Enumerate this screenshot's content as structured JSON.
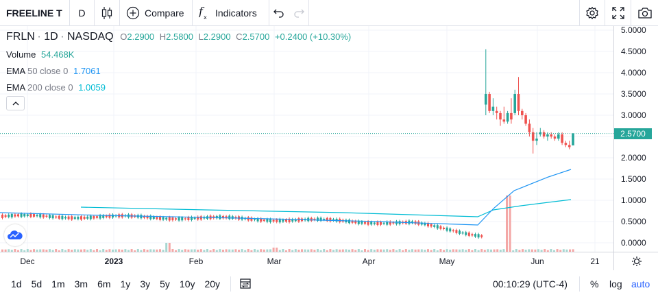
{
  "toolbar": {
    "symbol": "FREELINE T",
    "interval": "D",
    "compare_label": "Compare",
    "indicators_label": "Indicators"
  },
  "legend": {
    "ticker": "FRLN",
    "interval": "1D",
    "exchange": "NASDAQ",
    "o_label": "O",
    "o_value": "2.2900",
    "h_label": "H",
    "h_value": "2.5800",
    "l_label": "L",
    "l_value": "2.2900",
    "c_label": "C",
    "c_value": "2.5700",
    "change": "+0.2400 (+10.30%)",
    "volume_label": "Volume",
    "volume_value": "54.468K",
    "ema50_label": "EMA",
    "ema50_params": "50 close 0",
    "ema50_value": "1.7061",
    "ema200_label": "EMA",
    "ema200_params": "200 close 0",
    "ema200_value": "1.0059"
  },
  "price_scale": {
    "labels": [
      "5.0000",
      "4.5000",
      "4.0000",
      "3.5000",
      "3.0000",
      "2.5000",
      "2.0000",
      "1.5000",
      "1.0000",
      "0.5000",
      "0.0000"
    ],
    "last_price": "2.5700"
  },
  "time_axis": {
    "labels": [
      "Dec",
      "2023",
      "Feb",
      "Mar",
      "Apr",
      "May",
      "Jun",
      "21"
    ]
  },
  "bottombar": {
    "ranges": [
      "1d",
      "5d",
      "1m",
      "3m",
      "6m",
      "1y",
      "3y",
      "5y",
      "10y",
      "20y"
    ],
    "clock": "00:10:29 (UTC-4)",
    "percent": "%",
    "log": "log",
    "auto": "auto"
  },
  "colors": {
    "up": "#26a69a",
    "down": "#ef5350",
    "ema50": "#2196f3",
    "ema200": "#00bcd4",
    "accent": "#2962ff"
  },
  "chart_data": {
    "type": "candlestick",
    "ylim": [
      0,
      5
    ],
    "x_ticks": [
      "Dec",
      "2023",
      "Feb",
      "Mar",
      "Apr",
      "May",
      "Jun",
      "21"
    ],
    "ohlc": [
      {
        "o": 3.25,
        "h": 4.55,
        "l": 3.0,
        "c": 3.5
      },
      {
        "o": 3.5,
        "h": 3.55,
        "l": 3.05,
        "c": 3.1
      },
      {
        "o": 3.1,
        "h": 3.4,
        "l": 3.0,
        "c": 3.2
      },
      {
        "o": 3.1,
        "h": 3.2,
        "l": 2.9,
        "c": 3.05
      },
      {
        "o": 3.05,
        "h": 3.1,
        "l": 2.75,
        "c": 2.9
      },
      {
        "o": 2.9,
        "h": 3.2,
        "l": 2.8,
        "c": 2.85
      },
      {
        "o": 2.85,
        "h": 3.1,
        "l": 2.8,
        "c": 3.05
      },
      {
        "o": 3.05,
        "h": 3.4,
        "l": 2.8,
        "c": 2.9
      },
      {
        "o": 3.05,
        "h": 3.6,
        "l": 3.0,
        "c": 3.5
      },
      {
        "o": 3.5,
        "h": 3.9,
        "l": 3.0,
        "c": 3.1
      },
      {
        "o": 3.1,
        "h": 3.15,
        "l": 2.9,
        "c": 3.0
      },
      {
        "o": 3.0,
        "h": 3.05,
        "l": 2.75,
        "c": 2.8
      },
      {
        "o": 2.8,
        "h": 2.9,
        "l": 2.5,
        "c": 2.6
      },
      {
        "o": 2.6,
        "h": 2.7,
        "l": 2.1,
        "c": 2.4
      },
      {
        "o": 2.4,
        "h": 2.6,
        "l": 2.3,
        "c": 2.45
      },
      {
        "o": 2.55,
        "h": 2.7,
        "l": 2.5,
        "c": 2.6
      },
      {
        "o": 2.6,
        "h": 2.65,
        "l": 2.45,
        "c": 2.5
      },
      {
        "o": 2.5,
        "h": 2.6,
        "l": 2.4,
        "c": 2.55
      },
      {
        "o": 2.55,
        "h": 2.6,
        "l": 2.45,
        "c": 2.5
      },
      {
        "o": 2.5,
        "h": 2.55,
        "l": 2.4,
        "c": 2.45
      },
      {
        "o": 2.45,
        "h": 2.6,
        "l": 2.4,
        "c": 2.55
      },
      {
        "o": 2.55,
        "h": 2.6,
        "l": 2.3,
        "c": 2.35
      },
      {
        "o": 2.35,
        "h": 2.4,
        "l": 2.25,
        "c": 2.3
      },
      {
        "o": 2.3,
        "h": 2.4,
        "l": 2.2,
        "c": 2.25
      },
      {
        "o": 2.29,
        "h": 2.58,
        "l": 2.29,
        "c": 2.57
      }
    ],
    "ema50_label": "EMA 50 close 0",
    "ema200_label": "EMA 200 close 0"
  }
}
